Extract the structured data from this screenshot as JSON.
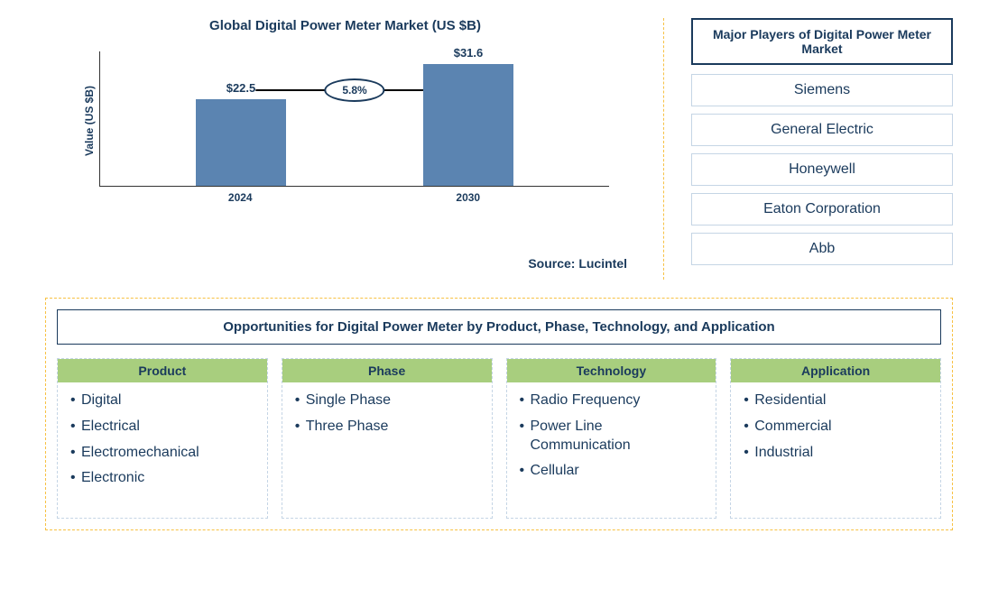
{
  "chart": {
    "title": "Global Digital Power Meter Market (US $B)",
    "y_axis_label": "Value (US $B)",
    "type": "bar",
    "categories": [
      "2024",
      "2030"
    ],
    "values": [
      22.5,
      31.6
    ],
    "value_labels": [
      "$22.5",
      "$31.6"
    ],
    "bar_color": "#5b84b1",
    "max_value": 35,
    "growth_rate": "5.8%",
    "source": "Source: Lucintel"
  },
  "players": {
    "header": "Major Players of Digital Power Meter Market",
    "items": [
      "Siemens",
      "General Electric",
      "Honeywell",
      "Eaton Corporation",
      "Abb"
    ]
  },
  "opportunities": {
    "header": "Opportunities for Digital Power Meter by Product, Phase, Technology, and Application",
    "categories": [
      {
        "name": "Product",
        "items": [
          "Digital",
          "Electrical",
          "Electromechanical",
          "Electronic"
        ]
      },
      {
        "name": "Phase",
        "items": [
          "Single Phase",
          "Three Phase"
        ]
      },
      {
        "name": "Technology",
        "items": [
          "Radio Frequency",
          "Power Line Communication",
          "Cellular"
        ]
      },
      {
        "name": "Application",
        "items": [
          "Residential",
          "Commercial",
          "Industrial"
        ]
      }
    ],
    "header_bg": "#a8ce7e"
  },
  "colors": {
    "primary_text": "#1a3a5c",
    "bar": "#5b84b1",
    "dashed_border": "#f7c143",
    "light_border": "#c5d5e5"
  }
}
